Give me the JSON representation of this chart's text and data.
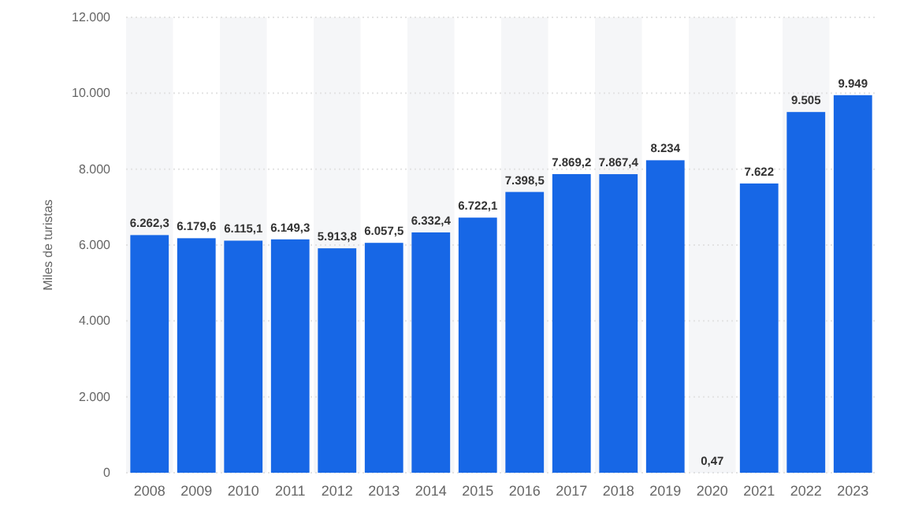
{
  "chart_data": {
    "type": "bar",
    "ylabel": "Miles de turistas",
    "categories": [
      "2008",
      "2009",
      "2010",
      "2011",
      "2012",
      "2013",
      "2014",
      "2015",
      "2016",
      "2017",
      "2018",
      "2019",
      "2020",
      "2021",
      "2022",
      "2023"
    ],
    "series": [
      {
        "color": "#1767e6",
        "values": [
          6262.3,
          6179.6,
          6115.1,
          6149.3,
          5913.8,
          6057.5,
          6332.4,
          6722.1,
          7398.5,
          7869.2,
          7867.4,
          8234,
          0.47,
          7622,
          9505,
          9949
        ]
      }
    ],
    "value_labels": [
      "6.262,3",
      "6.179,6",
      "6.115,1",
      "6.149,3",
      "5.913,8",
      "6.057,5",
      "6.332,4",
      "6.722,1",
      "7.398,5",
      "7.869,2",
      "7.867,4",
      "8.234",
      "0,47",
      "7.622",
      "9.505",
      "9.949"
    ],
    "ylim": [
      0,
      12000
    ],
    "yticks": [
      {
        "value": 0,
        "label": "0"
      },
      {
        "value": 2000,
        "label": "2.000"
      },
      {
        "value": 4000,
        "label": "4.000"
      },
      {
        "value": 6000,
        "label": "6.000"
      },
      {
        "value": 8000,
        "label": "8.000"
      },
      {
        "value": 10000,
        "label": "10.000"
      },
      {
        "value": 12000,
        "label": "12.000"
      }
    ],
    "grid": "y"
  }
}
